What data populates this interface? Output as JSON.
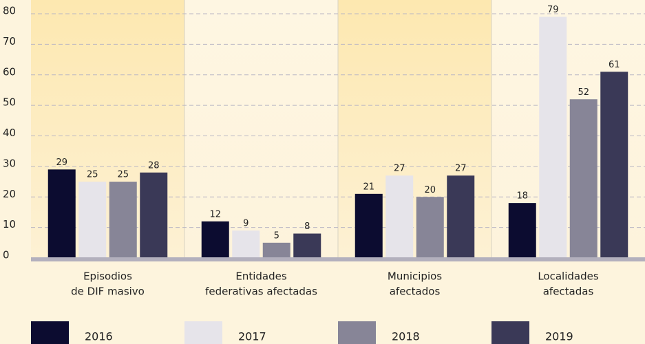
{
  "chart_data": {
    "type": "bar",
    "categories": [
      [
        "Episodios",
        "de DIF masivo"
      ],
      [
        "Entidades",
        "federativas afectadas"
      ],
      [
        "Municipios",
        "afectados"
      ],
      [
        "Localidades",
        "afectadas"
      ]
    ],
    "series": [
      {
        "name": "2016",
        "color": "#0c0c30",
        "values": [
          29,
          12,
          21,
          18
        ]
      },
      {
        "name": "2017",
        "color": "#e6e4ea",
        "values": [
          25,
          9,
          27,
          79
        ]
      },
      {
        "name": "2018",
        "color": "#878597",
        "values": [
          25,
          5,
          20,
          52
        ]
      },
      {
        "name": "2019",
        "color": "#3a3957",
        "values": [
          28,
          8,
          27,
          61
        ]
      }
    ],
    "ylim": [
      0,
      80
    ],
    "yticks": [
      0,
      10,
      20,
      30,
      40,
      50,
      60,
      70,
      80
    ],
    "grid": true,
    "legend": "bottom"
  }
}
